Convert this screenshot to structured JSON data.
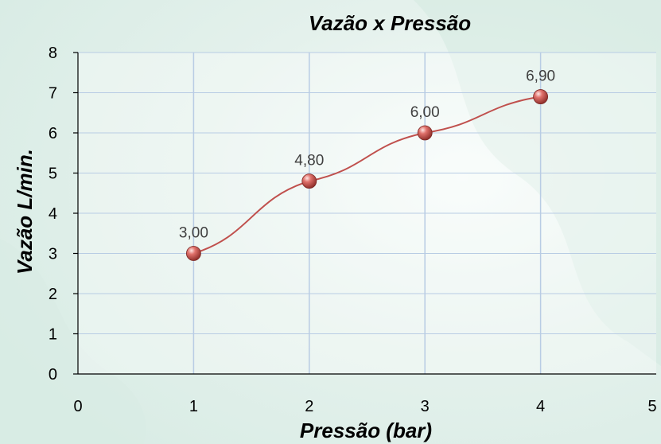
{
  "chart_data": {
    "type": "scatter",
    "title": "Vazão x Pressão",
    "xlabel": "Pressão (bar)",
    "ylabel": "Vazão L/min.",
    "xlim": [
      0,
      5
    ],
    "ylim": [
      0,
      8
    ],
    "x_ticks": [
      "0",
      "1",
      "2",
      "3",
      "4",
      "5"
    ],
    "y_ticks": [
      "0",
      "1",
      "2",
      "3",
      "4",
      "5",
      "6",
      "7",
      "8"
    ],
    "grid": "vertical",
    "series": [
      {
        "x": [
          1,
          2,
          3,
          4
        ],
        "y": [
          3.0,
          4.8,
          6.0,
          6.9
        ],
        "labels": [
          "3,00",
          "4,80",
          "6,00",
          "6,90"
        ]
      }
    ],
    "colors": {
      "line": "#c0504d",
      "marker": "#c0504d",
      "grid": "#b8cce4",
      "axis": "#000000",
      "background": "#eaf4f0"
    }
  }
}
